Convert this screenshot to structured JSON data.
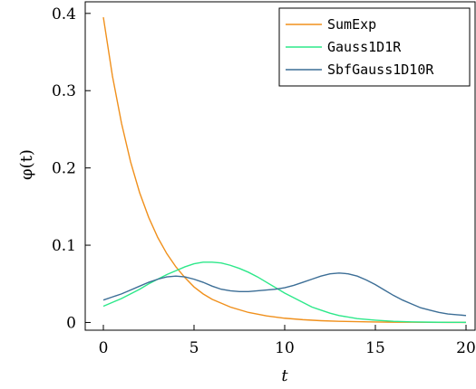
{
  "chart_data": {
    "type": "line",
    "xlabel": "t",
    "ylabel": "φ(t)",
    "xlim": [
      -1,
      20.5
    ],
    "ylim": [
      -0.01,
      0.415
    ],
    "x_ticks": [
      0,
      5,
      10,
      15,
      20
    ],
    "x_tick_labels": [
      "0",
      "5",
      "10",
      "15",
      "20"
    ],
    "y_ticks": [
      0,
      0.1,
      0.2,
      0.3,
      0.4
    ],
    "y_tick_labels": [
      "0",
      "0.1",
      "0.2",
      "0.3",
      "0.4"
    ],
    "grid": false,
    "legend_position": "top-right",
    "series": [
      {
        "name": "SumExp",
        "color": "#f0901c",
        "x": [
          0,
          0.5,
          1,
          1.5,
          2,
          2.5,
          3,
          3.5,
          4,
          4.5,
          5,
          5.5,
          6,
          7,
          8,
          9,
          10,
          11,
          12,
          13,
          14,
          15,
          16,
          17,
          18,
          19,
          20
        ],
        "y": [
          0.395,
          0.319,
          0.258,
          0.208,
          0.168,
          0.136,
          0.11,
          0.089,
          0.072,
          0.058,
          0.046,
          0.037,
          0.03,
          0.02,
          0.013,
          0.0085,
          0.0055,
          0.0036,
          0.0023,
          0.0015,
          0.001,
          0.0006,
          0.0004,
          0.0003,
          0.0002,
          0.0001,
          0.0001
        ]
      },
      {
        "name": "Gauss1D1R",
        "color": "#2de88a",
        "x": [
          0,
          0.5,
          1,
          1.5,
          2,
          2.5,
          3,
          3.5,
          4,
          4.5,
          5,
          5.5,
          6,
          6.5,
          7,
          7.5,
          8,
          8.5,
          9,
          9.5,
          10,
          10.5,
          11,
          11.5,
          12,
          12.5,
          13,
          14,
          15,
          16,
          17,
          18,
          19,
          20
        ],
        "y": [
          0.021,
          0.026,
          0.031,
          0.037,
          0.043,
          0.05,
          0.056,
          0.062,
          0.067,
          0.072,
          0.076,
          0.078,
          0.078,
          0.077,
          0.074,
          0.07,
          0.065,
          0.059,
          0.052,
          0.045,
          0.038,
          0.032,
          0.026,
          0.02,
          0.016,
          0.012,
          0.009,
          0.005,
          0.003,
          0.0015,
          0.0008,
          0.0004,
          0.0002,
          0.0001
        ]
      },
      {
        "name": "SbfGauss1D10R",
        "color": "#3c6e96",
        "x": [
          0,
          0.5,
          1,
          1.5,
          2,
          2.5,
          3,
          3.5,
          4,
          4.5,
          5,
          5.5,
          6,
          6.5,
          7,
          7.5,
          8,
          8.5,
          9,
          9.5,
          10,
          10.5,
          11,
          11.5,
          12,
          12.5,
          13,
          13.5,
          14,
          14.5,
          15,
          15.5,
          16,
          16.5,
          17,
          17.5,
          18,
          18.5,
          19,
          19.5,
          20
        ],
        "y": [
          0.029,
          0.033,
          0.037,
          0.042,
          0.047,
          0.052,
          0.056,
          0.059,
          0.06,
          0.059,
          0.056,
          0.052,
          0.047,
          0.043,
          0.041,
          0.04,
          0.04,
          0.041,
          0.042,
          0.043,
          0.045,
          0.048,
          0.052,
          0.056,
          0.06,
          0.063,
          0.064,
          0.063,
          0.06,
          0.055,
          0.049,
          0.042,
          0.035,
          0.029,
          0.024,
          0.019,
          0.016,
          0.013,
          0.011,
          0.01,
          0.009
        ]
      }
    ]
  }
}
